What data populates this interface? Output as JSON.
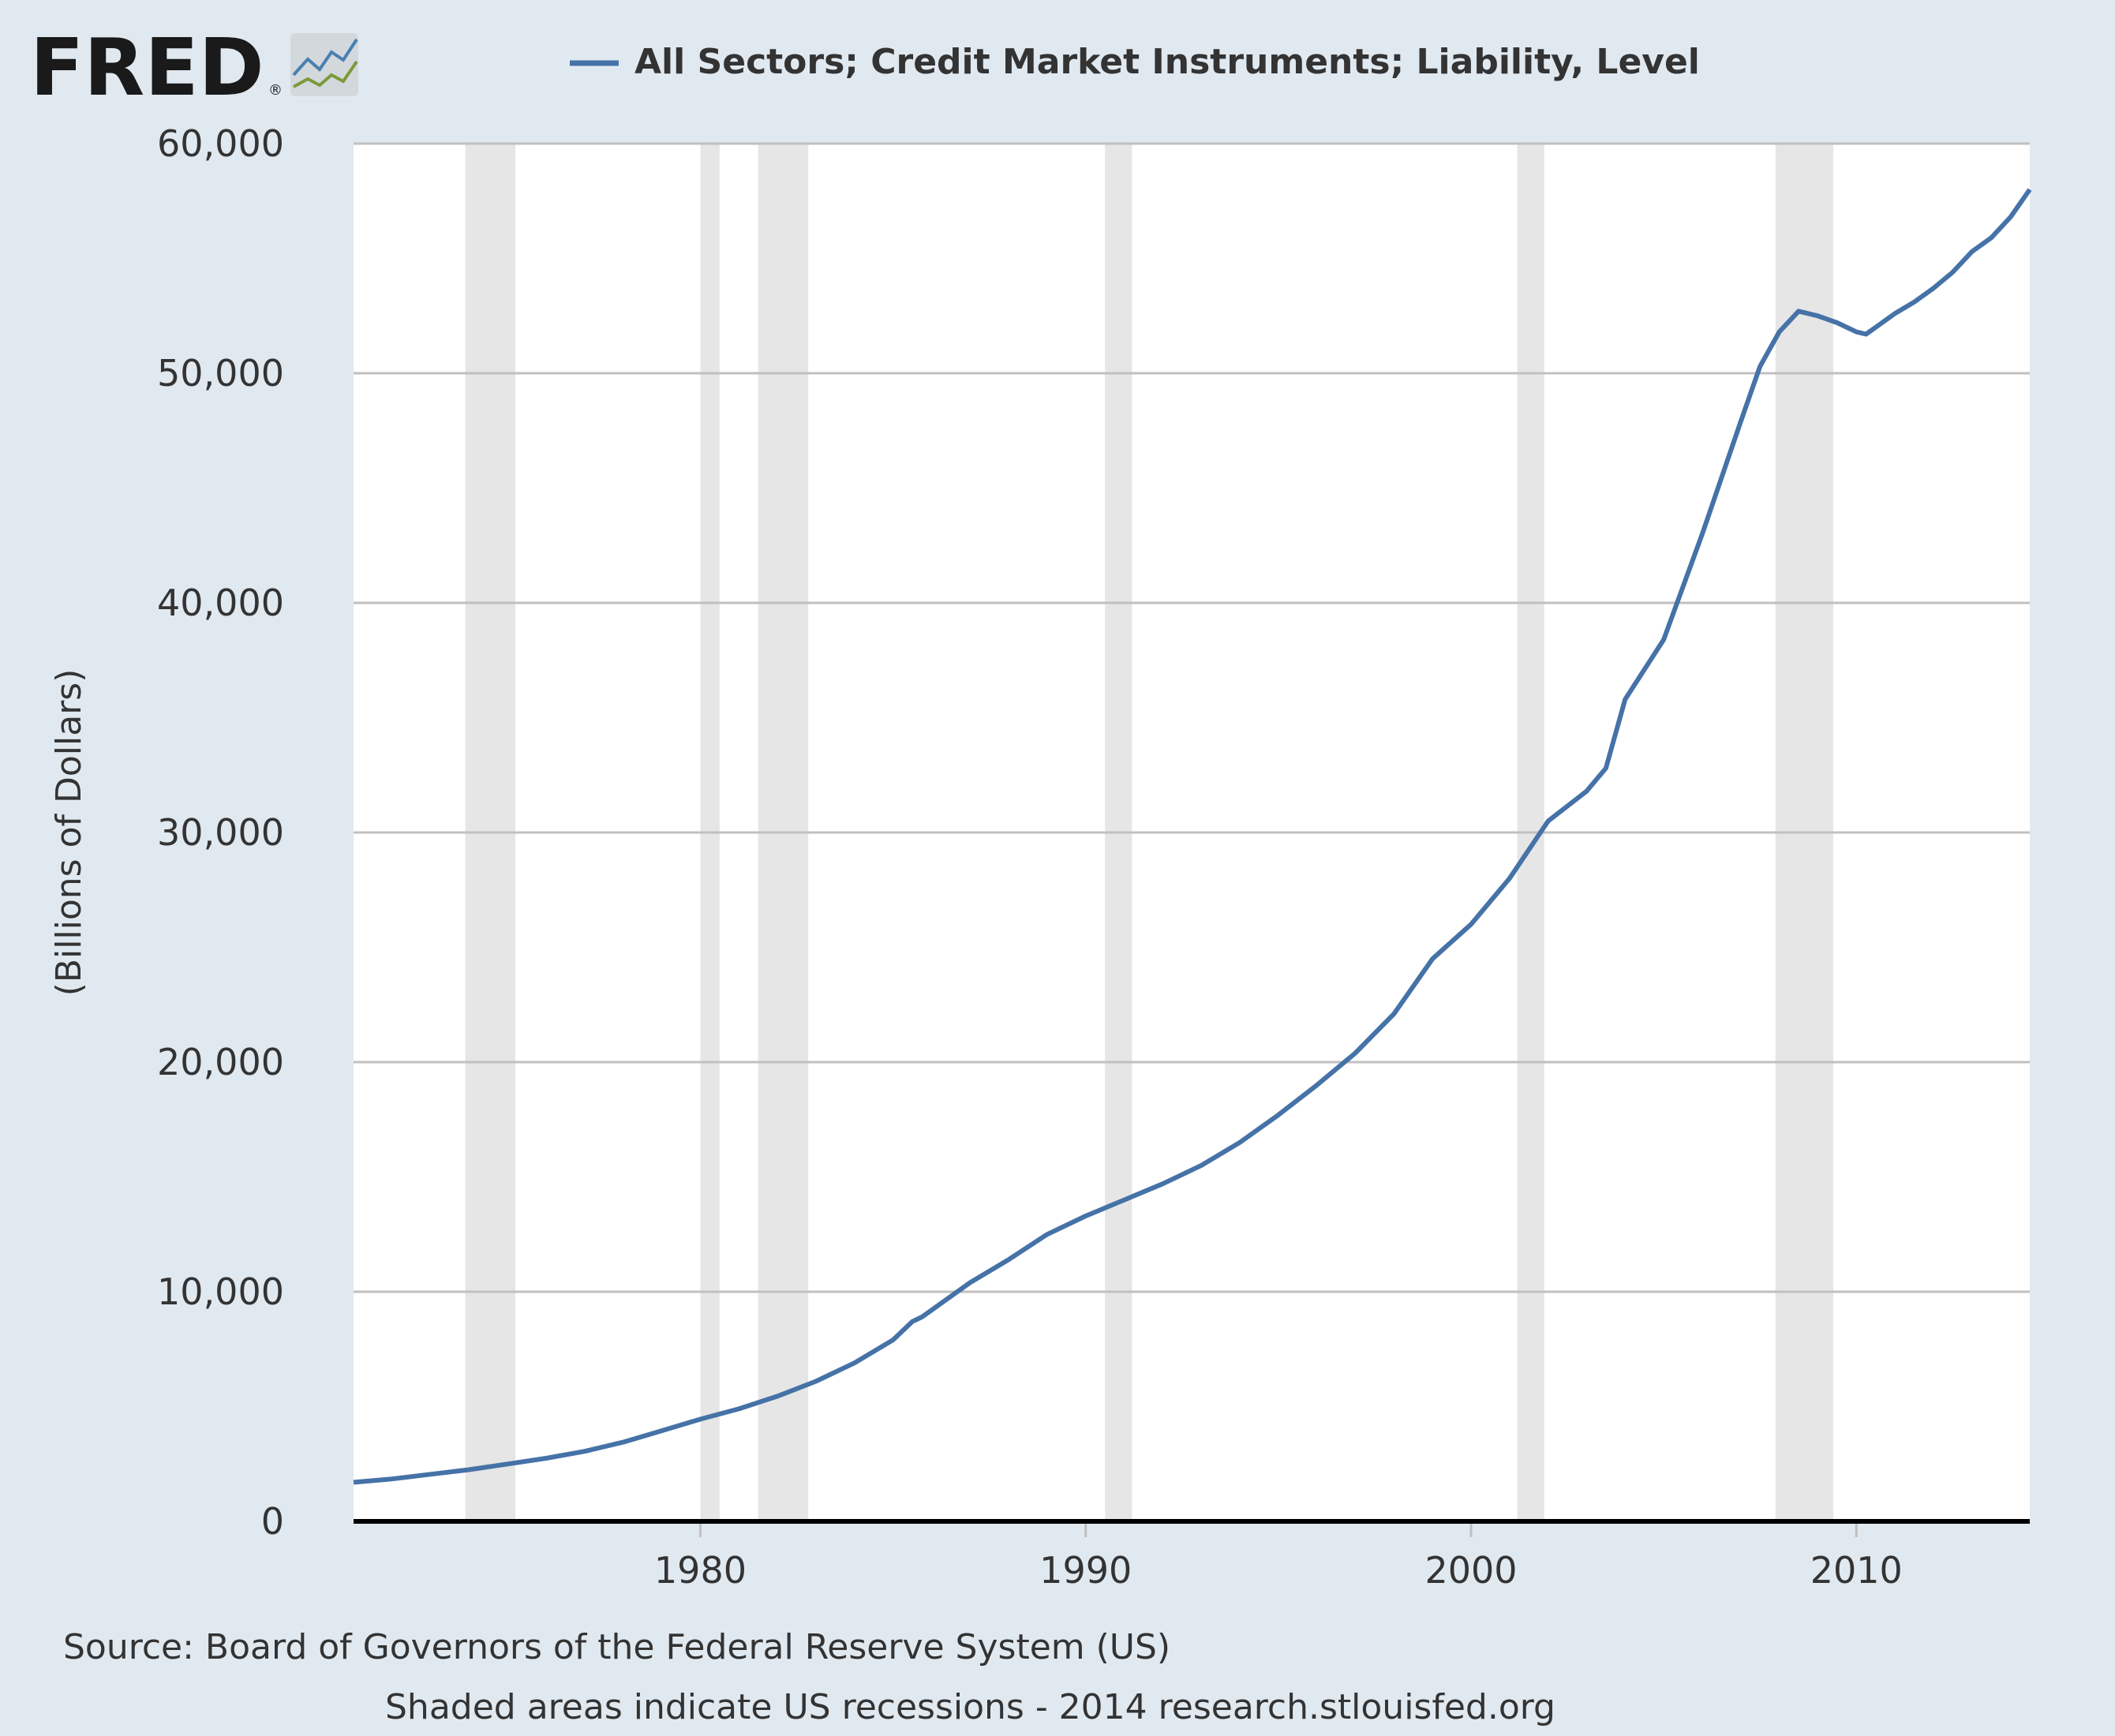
{
  "logo": {
    "text": "FRED",
    "registered": "®"
  },
  "colors": {
    "background": "#e1e9f0",
    "plot_background": "#ffffff",
    "series": "#4572a7",
    "recession": "#e6e6e6",
    "grid": "#c0c0c0",
    "text": "#333333"
  },
  "chart_data": {
    "type": "line",
    "title": "All Sectors; Credit Market Instruments; Liability, Level",
    "xlabel": "",
    "ylabel": "(Billions of Dollars)",
    "xlim": [
      1971.0,
      2014.5
    ],
    "ylim": [
      0,
      60000
    ],
    "grid": true,
    "legend_position": "top",
    "x_ticks": [
      1980,
      1990,
      2000,
      2010
    ],
    "y_ticks": [
      0,
      10000,
      20000,
      30000,
      40000,
      50000,
      60000
    ],
    "x_tick_labels": [
      "1980",
      "1990",
      "2000",
      "2010"
    ],
    "y_tick_labels": [
      "0",
      "10,000",
      "20,000",
      "30,000",
      "40,000",
      "50,000",
      "60,000"
    ],
    "recessions": [
      [
        1973.9,
        1975.2
      ],
      [
        1980.0,
        1980.5
      ],
      [
        1981.5,
        1982.8
      ],
      [
        1990.5,
        1991.2
      ],
      [
        2001.2,
        2001.9
      ],
      [
        2007.9,
        2009.4
      ]
    ],
    "series": [
      {
        "name": "All Sectors; Credit Market Instruments; Liability, Level",
        "x": [
          1971.0,
          1972.0,
          1973.0,
          1974.0,
          1975.0,
          1976.0,
          1977.0,
          1978.0,
          1979.0,
          1980.0,
          1981.0,
          1982.0,
          1983.0,
          1984.0,
          1985.0,
          1985.5,
          1985.75,
          1986.0,
          1987.0,
          1988.0,
          1989.0,
          1990.0,
          1991.0,
          1992.0,
          1993.0,
          1994.0,
          1995.0,
          1996.0,
          1997.0,
          1998.0,
          1999.0,
          2000.0,
          2001.0,
          2002.0,
          2003.0,
          2003.5,
          2004.0,
          2005.0,
          2006.0,
          2007.0,
          2007.5,
          2008.0,
          2008.5,
          2009.0,
          2009.5,
          2010.0,
          2010.25,
          2010.5,
          2011.0,
          2011.5,
          2012.0,
          2012.5,
          2013.0,
          2013.5,
          2014.0,
          2014.5
        ],
        "y": [
          1700,
          1850,
          2050,
          2250,
          2500,
          2750,
          3050,
          3450,
          3950,
          4450,
          4900,
          5450,
          6100,
          6900,
          7900,
          8700,
          8900,
          9200,
          10400,
          11400,
          12500,
          13300,
          14000,
          14700,
          15500,
          16500,
          17700,
          19000,
          20400,
          22100,
          24500,
          26000,
          28000,
          30500,
          31800,
          32800,
          35800,
          38400,
          43000,
          47900,
          50300,
          51800,
          52700,
          52500,
          52200,
          51800,
          51700,
          52000,
          52600,
          53100,
          53700,
          54400,
          55300,
          55900,
          56800,
          58000
        ]
      }
    ]
  },
  "footer": {
    "source": "Source: Board of Governors of the Federal Reserve System (US)",
    "note": "Shaded areas indicate US recessions - 2014 research.stlouisfed.org"
  }
}
